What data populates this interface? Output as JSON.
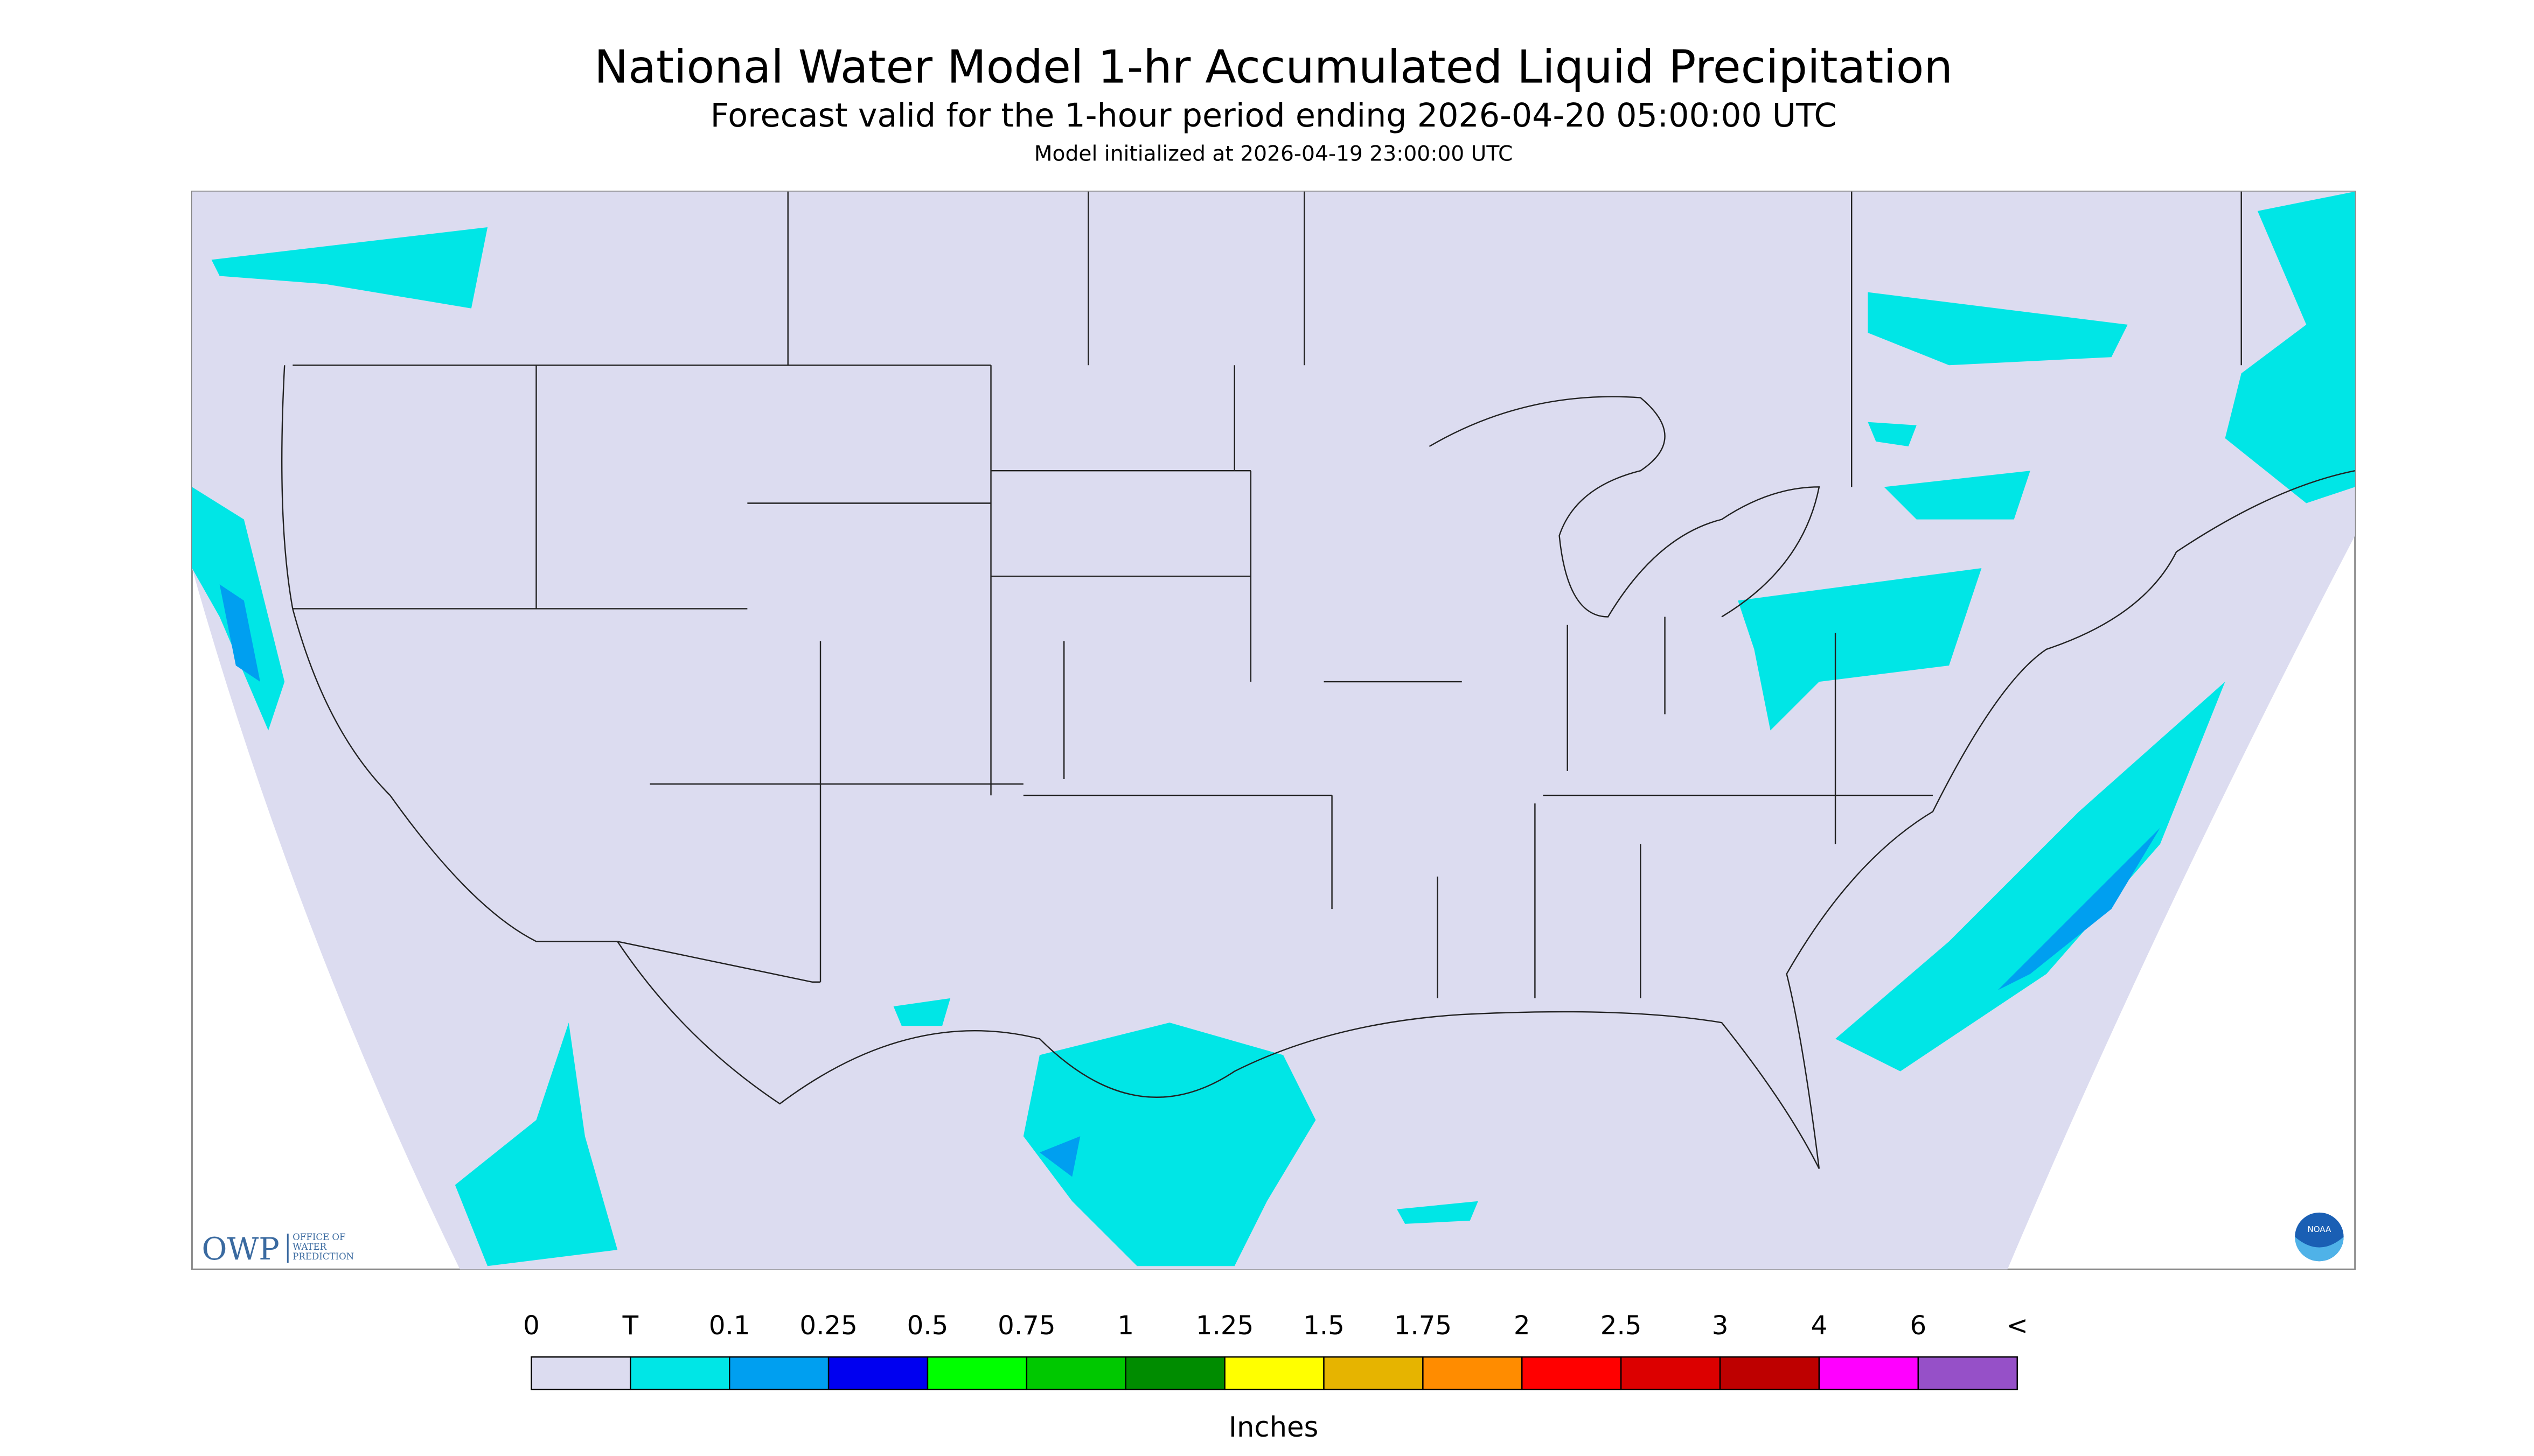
{
  "header": {
    "title": "National Water Model 1-hr Accumulated Liquid Precipitation",
    "subtitle": "Forecast valid for the 1-hour period ending 2026-04-20 05:00:00 UTC",
    "init": "Model initialized at 2026-04-19 23:00:00 UTC"
  },
  "logo": {
    "owp": "OWP",
    "office": [
      "OFFICE OF",
      "WATER",
      "PREDICTION"
    ],
    "noaa": "NOAA"
  },
  "legend": {
    "labels": [
      "0",
      "T",
      "0.1",
      "0.25",
      "0.5",
      "0.75",
      "1",
      "1.25",
      "1.5",
      "1.75",
      "2",
      "2.5",
      "3",
      "4",
      "6",
      "<"
    ],
    "colors": [
      "#dcdcf0",
      "#00e6e6",
      "#009ff0",
      "#0000f0",
      "#00ff00",
      "#00c800",
      "#008c00",
      "#ffff00",
      "#e6b400",
      "#ff8c00",
      "#ff0000",
      "#dc0000",
      "#be0000",
      "#ff00ff",
      "#9650c8"
    ],
    "unit": "Inches"
  }
}
